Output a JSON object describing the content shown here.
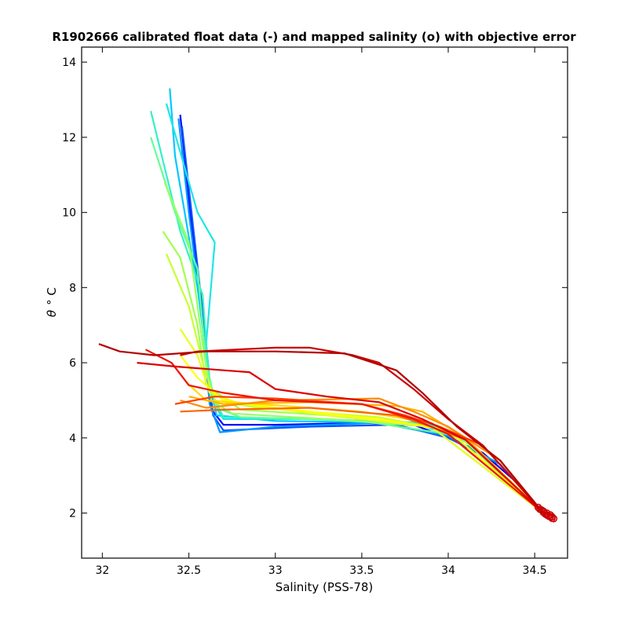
{
  "chart_data": {
    "type": "line",
    "title": "R1902666 calibrated float data (-) and mapped salinity (o) with objective error",
    "xlabel": "Salinity (PSS-78)",
    "ylabel_symbol": "θ",
    "ylabel_unit": "° C",
    "xlim": [
      31.88,
      34.69
    ],
    "ylim": [
      0.8,
      14.4
    ],
    "xticks": [
      32,
      32.5,
      33,
      33.5,
      34,
      34.5
    ],
    "xtick_labels": [
      "32",
      "32.5",
      "33",
      "33.5",
      "34",
      "34.5"
    ],
    "yticks": [
      2,
      4,
      6,
      8,
      10,
      12,
      14
    ],
    "ytick_labels": [
      "2",
      "4",
      "6",
      "8",
      "10",
      "12",
      "14"
    ],
    "grid": false,
    "series": [
      {
        "color": "#0000ff",
        "points": [
          [
            32.45,
            12.6
          ],
          [
            32.52,
            9.5
          ],
          [
            32.58,
            7.2
          ],
          [
            32.62,
            5.0
          ],
          [
            32.64,
            4.7
          ],
          [
            32.7,
            4.35
          ],
          [
            33.0,
            4.35
          ],
          [
            33.5,
            4.4
          ],
          [
            33.8,
            4.35
          ],
          [
            34.0,
            4.0
          ],
          [
            34.2,
            3.6
          ],
          [
            34.4,
            2.8
          ],
          [
            34.55,
            2.0
          ]
        ]
      },
      {
        "color": "#0a50ff",
        "points": [
          [
            32.46,
            12.3
          ],
          [
            32.53,
            9.4
          ],
          [
            32.6,
            6.5
          ],
          [
            32.64,
            4.6
          ],
          [
            32.7,
            4.2
          ],
          [
            33.2,
            4.3
          ],
          [
            33.7,
            4.35
          ],
          [
            34.0,
            4.0
          ],
          [
            34.3,
            3.3
          ],
          [
            34.55,
            2.0
          ]
        ]
      },
      {
        "color": "#0096ff",
        "points": [
          [
            32.44,
            12.5
          ],
          [
            32.5,
            10.0
          ],
          [
            32.58,
            7.0
          ],
          [
            32.62,
            4.9
          ],
          [
            32.68,
            4.15
          ],
          [
            33.0,
            4.3
          ],
          [
            33.6,
            4.4
          ],
          [
            34.0,
            4.05
          ],
          [
            34.3,
            3.3
          ],
          [
            34.55,
            2.0
          ]
        ]
      },
      {
        "color": "#00c8ff",
        "points": [
          [
            32.39,
            13.3
          ],
          [
            32.42,
            11.5
          ],
          [
            32.55,
            8.0
          ],
          [
            32.62,
            5.5
          ],
          [
            32.66,
            4.6
          ],
          [
            33.0,
            4.45
          ],
          [
            33.8,
            4.4
          ],
          [
            34.1,
            3.95
          ],
          [
            34.55,
            2.0
          ]
        ]
      },
      {
        "color": "#1ee6e6",
        "points": [
          [
            32.37,
            12.9
          ],
          [
            32.55,
            10.0
          ],
          [
            32.65,
            9.2
          ],
          [
            32.6,
            6.5
          ],
          [
            32.63,
            5.0
          ],
          [
            32.7,
            4.5
          ],
          [
            33.2,
            4.5
          ],
          [
            33.9,
            4.4
          ],
          [
            34.1,
            3.9
          ],
          [
            34.55,
            2.0
          ]
        ]
      },
      {
        "color": "#32f0c8",
        "points": [
          [
            32.28,
            12.7
          ],
          [
            32.45,
            9.5
          ],
          [
            32.58,
            7.8
          ],
          [
            32.62,
            5.3
          ],
          [
            32.7,
            4.55
          ],
          [
            33.3,
            4.5
          ],
          [
            33.9,
            4.35
          ],
          [
            34.1,
            3.9
          ],
          [
            34.55,
            2.0
          ]
        ]
      },
      {
        "color": "#64ff96",
        "points": [
          [
            32.28,
            12.0
          ],
          [
            32.42,
            10.0
          ],
          [
            32.55,
            8.5
          ],
          [
            32.6,
            6.0
          ],
          [
            32.66,
            4.8
          ],
          [
            32.8,
            4.55
          ],
          [
            33.5,
            4.45
          ],
          [
            34.0,
            4.1
          ],
          [
            34.55,
            2.0
          ]
        ]
      },
      {
        "color": "#96ff64",
        "points": [
          [
            32.36,
            10.8
          ],
          [
            32.5,
            9.2
          ],
          [
            32.58,
            6.5
          ],
          [
            32.63,
            5.0
          ],
          [
            32.75,
            4.65
          ],
          [
            33.3,
            4.5
          ],
          [
            33.9,
            4.3
          ],
          [
            34.1,
            3.9
          ],
          [
            34.55,
            2.0
          ]
        ]
      },
      {
        "color": "#a0ff50",
        "points": [
          [
            32.35,
            9.5
          ],
          [
            32.45,
            8.8
          ],
          [
            32.55,
            7.0
          ],
          [
            32.6,
            5.4
          ],
          [
            32.8,
            4.75
          ],
          [
            33.3,
            4.6
          ],
          [
            33.9,
            4.3
          ],
          [
            34.55,
            2.0
          ]
        ]
      },
      {
        "color": "#c8ff32",
        "points": [
          [
            32.37,
            8.9
          ],
          [
            32.5,
            7.5
          ],
          [
            32.58,
            6.0
          ],
          [
            32.65,
            5.0
          ],
          [
            32.9,
            4.8
          ],
          [
            33.6,
            4.55
          ],
          [
            34.0,
            4.2
          ],
          [
            34.55,
            2.0
          ]
        ]
      },
      {
        "color": "#e6ff1e",
        "points": [
          [
            32.45,
            6.9
          ],
          [
            32.55,
            6.2
          ],
          [
            32.62,
            5.2
          ],
          [
            32.8,
            4.9
          ],
          [
            33.3,
            4.6
          ],
          [
            33.9,
            4.3
          ],
          [
            34.55,
            2.0
          ]
        ]
      },
      {
        "color": "#ffff00",
        "points": [
          [
            32.45,
            6.2
          ],
          [
            32.55,
            5.6
          ],
          [
            32.7,
            5.0
          ],
          [
            33.0,
            4.8
          ],
          [
            33.6,
            4.5
          ],
          [
            34.0,
            4.2
          ],
          [
            34.55,
            2.0
          ]
        ]
      },
      {
        "color": "#ffdc00",
        "points": [
          [
            32.48,
            5.5
          ],
          [
            32.6,
            5.0
          ],
          [
            32.9,
            4.9
          ],
          [
            33.5,
            4.7
          ],
          [
            33.9,
            4.4
          ],
          [
            34.1,
            4.0
          ],
          [
            34.55,
            2.0
          ]
        ]
      },
      {
        "color": "#ffb400",
        "points": [
          [
            32.5,
            5.1
          ],
          [
            32.7,
            4.9
          ],
          [
            33.2,
            4.95
          ],
          [
            33.7,
            4.85
          ],
          [
            33.85,
            4.7
          ],
          [
            34.1,
            4.0
          ],
          [
            34.55,
            2.0
          ]
        ]
      },
      {
        "color": "#ff8c00",
        "points": [
          [
            32.45,
            5.0
          ],
          [
            32.6,
            4.8
          ],
          [
            33.0,
            5.0
          ],
          [
            33.6,
            5.05
          ],
          [
            33.8,
            4.7
          ],
          [
            34.0,
            4.3
          ],
          [
            34.3,
            3.4
          ],
          [
            34.55,
            2.0
          ]
        ]
      },
      {
        "color": "#ff6400",
        "points": [
          [
            32.45,
            4.7
          ],
          [
            32.7,
            4.75
          ],
          [
            33.2,
            4.8
          ],
          [
            33.7,
            4.6
          ],
          [
            33.9,
            4.3
          ],
          [
            34.1,
            3.95
          ],
          [
            34.55,
            2.0
          ]
        ]
      },
      {
        "color": "#ff3c00",
        "points": [
          [
            32.42,
            4.9
          ],
          [
            32.65,
            5.1
          ],
          [
            33.0,
            5.05
          ],
          [
            33.5,
            4.9
          ],
          [
            33.75,
            4.6
          ],
          [
            33.95,
            4.3
          ],
          [
            34.2,
            3.8
          ],
          [
            34.55,
            2.0
          ]
        ]
      },
      {
        "color": "#f01400",
        "points": [
          [
            32.25,
            6.35
          ],
          [
            32.4,
            6.0
          ],
          [
            32.5,
            5.4
          ],
          [
            32.7,
            5.2
          ],
          [
            33.0,
            5.0
          ],
          [
            33.5,
            4.9
          ],
          [
            33.8,
            4.5
          ],
          [
            34.0,
            4.1
          ],
          [
            34.55,
            2.0
          ]
        ]
      },
      {
        "color": "#dc0000",
        "points": [
          [
            32.2,
            6.0
          ],
          [
            32.42,
            5.9
          ],
          [
            32.7,
            5.8
          ],
          [
            32.85,
            5.75
          ],
          [
            33.0,
            5.3
          ],
          [
            33.3,
            5.1
          ],
          [
            33.6,
            4.95
          ],
          [
            33.85,
            4.5
          ],
          [
            34.1,
            3.95
          ],
          [
            34.55,
            2.0
          ]
        ]
      },
      {
        "color": "#c80000",
        "points": [
          [
            32.45,
            6.2
          ],
          [
            32.55,
            6.3
          ],
          [
            33.0,
            6.4
          ],
          [
            33.2,
            6.4
          ],
          [
            33.45,
            6.2
          ],
          [
            33.6,
            6.0
          ],
          [
            33.8,
            5.3
          ],
          [
            34.0,
            4.5
          ],
          [
            34.2,
            3.8
          ],
          [
            34.55,
            2.0
          ]
        ]
      },
      {
        "color": "#b40000",
        "points": [
          [
            31.98,
            6.5
          ],
          [
            32.1,
            6.3
          ],
          [
            32.3,
            6.2
          ],
          [
            32.6,
            6.3
          ],
          [
            33.0,
            6.3
          ],
          [
            33.4,
            6.25
          ],
          [
            33.7,
            5.8
          ],
          [
            33.85,
            5.2
          ],
          [
            34.05,
            4.3
          ],
          [
            34.3,
            3.4
          ],
          [
            34.55,
            2.0
          ]
        ]
      }
    ],
    "mapped_points": [
      [
        34.52,
        2.15
      ],
      [
        34.54,
        2.08
      ],
      [
        34.55,
        2.02
      ],
      [
        34.56,
        1.98
      ],
      [
        34.57,
        1.95
      ],
      [
        34.58,
        1.92
      ],
      [
        34.59,
        1.9
      ],
      [
        34.6,
        1.86
      ],
      [
        34.61,
        1.85
      ],
      [
        34.53,
        2.1
      ],
      [
        34.55,
        2.05
      ],
      [
        34.57,
        2.0
      ],
      [
        34.59,
        1.95
      ],
      [
        34.6,
        1.9
      ]
    ],
    "mapped_color": "#cc0000"
  }
}
